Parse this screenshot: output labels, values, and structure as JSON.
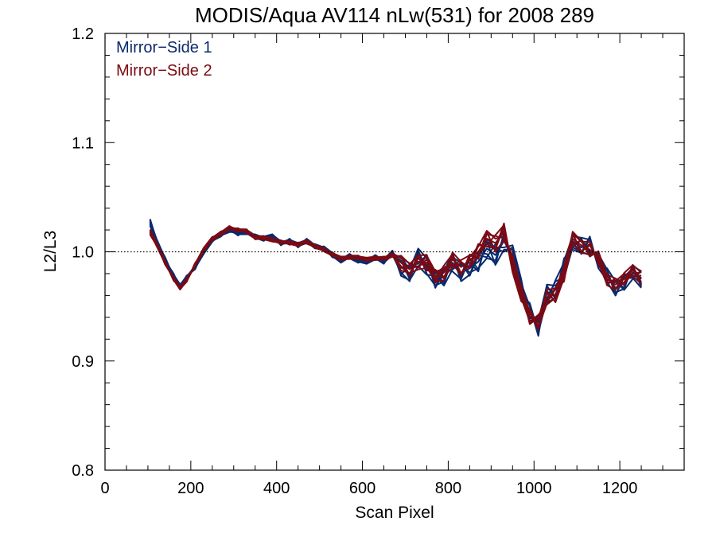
{
  "chart_data": {
    "type": "line",
    "title": "MODIS/Aqua AV114 nLw(531) for 2008 289",
    "xlabel": "Scan Pixel",
    "ylabel": "L2/L3",
    "xlim": [
      0,
      1350
    ],
    "ylim": [
      0.8,
      1.2
    ],
    "x_ticks": [
      "0",
      "200",
      "400",
      "600",
      "800",
      "1000",
      "1200"
    ],
    "y_ticks": [
      "0.8",
      "0.9",
      "1.0",
      "1.1",
      "1.2"
    ],
    "x_tick_values": [
      0,
      200,
      400,
      600,
      800,
      1000,
      1200
    ],
    "y_tick_values": [
      0.8,
      0.9,
      1.0,
      1.1,
      1.2
    ],
    "x_minor_step": 50,
    "y_minor_step": 0.02,
    "reference_line": {
      "y": 1.0,
      "style": "dotted"
    },
    "legend_placement": "top-left",
    "grid": false,
    "x": [
      105,
      120,
      140,
      160,
      175,
      190,
      210,
      230,
      250,
      270,
      290,
      310,
      330,
      350,
      370,
      390,
      410,
      430,
      450,
      470,
      490,
      510,
      530,
      550,
      570,
      590,
      610,
      630,
      650,
      670,
      690,
      710,
      730,
      750,
      770,
      790,
      810,
      830,
      850,
      870,
      890,
      910,
      930,
      950,
      970,
      990,
      1010,
      1030,
      1050,
      1070,
      1090,
      1110,
      1130,
      1150,
      1170,
      1190,
      1210,
      1230,
      1250
    ],
    "series": [
      {
        "name": "Mirror−Side 1",
        "color": "#0a2a6e",
        "values": [
          1.027,
          1.01,
          0.993,
          0.978,
          0.968,
          0.976,
          0.986,
          1.0,
          1.011,
          1.016,
          1.02,
          1.017,
          1.018,
          1.014,
          1.012,
          1.014,
          1.008,
          1.01,
          1.006,
          1.01,
          1.005,
          1.003,
          0.997,
          0.992,
          0.996,
          0.992,
          0.991,
          0.995,
          0.991,
          0.999,
          0.986,
          0.98,
          0.994,
          0.988,
          0.974,
          0.977,
          0.99,
          0.981,
          0.985,
          0.991,
          1.003,
          0.997,
          1.01,
          0.995,
          0.966,
          0.944,
          0.932,
          0.962,
          0.965,
          0.985,
          1.01,
          1.004,
          1.006,
          0.992,
          0.978,
          0.967,
          0.972,
          0.981,
          0.976
        ]
      },
      {
        "name": "Mirror−Side 2",
        "color": "#7a0a14",
        "values": [
          1.018,
          1.007,
          0.99,
          0.975,
          0.967,
          0.974,
          0.988,
          1.002,
          1.012,
          1.017,
          1.022,
          1.02,
          1.019,
          1.013,
          1.013,
          1.011,
          1.009,
          1.008,
          1.007,
          1.009,
          1.005,
          1.002,
          0.998,
          0.994,
          0.995,
          0.995,
          0.993,
          0.994,
          0.994,
          0.997,
          0.99,
          0.984,
          0.991,
          0.99,
          0.978,
          0.981,
          0.993,
          0.986,
          0.992,
          1.0,
          1.012,
          1.008,
          1.018,
          0.99,
          0.962,
          0.941,
          0.935,
          0.958,
          0.961,
          0.98,
          1.012,
          1.006,
          1.002,
          0.995,
          0.975,
          0.97,
          0.975,
          0.983,
          0.975
        ]
      }
    ],
    "sample_offsets": [
      [
        0,
        0,
        0,
        0,
        0,
        0,
        0,
        0,
        0,
        0,
        0,
        0,
        0,
        0,
        0,
        0,
        0,
        0,
        0,
        0,
        0,
        0,
        0,
        0,
        0,
        0,
        0,
        0,
        0,
        0,
        0,
        0,
        0,
        0,
        0,
        0,
        0,
        0,
        0,
        0,
        0,
        0,
        0,
        0,
        0,
        0,
        0,
        0,
        0,
        0,
        0,
        0,
        0,
        0,
        0,
        0,
        0,
        0,
        0
      ],
      [
        0.002,
        -0.001,
        0.002,
        -0.002,
        0.001,
        0.002,
        -0.002,
        0.001,
        -0.001,
        0.002,
        0.001,
        -0.002,
        0.002,
        0.001,
        -0.001,
        -0.002,
        0.002,
        -0.001,
        0.001,
        -0.002,
        0.002,
        0.001,
        -0.002,
        0.001,
        0.002,
        -0.001,
        -0.002,
        0.002,
        0.001,
        -0.002,
        0.006,
        -0.005,
        0.007,
        -0.004,
        0.008,
        -0.006,
        0.005,
        0.009,
        -0.007,
        0.006,
        -0.008,
        0.01,
        0.009,
        -0.006,
        0.008,
        -0.007,
        0.006,
        -0.008,
        0.009,
        0.005,
        -0.006,
        0.007,
        -0.005,
        0.004,
        -0.006,
        0.005,
        0.004,
        -0.005,
        0.006
      ],
      [
        -0.002,
        0.001,
        -0.001,
        0.002,
        -0.002,
        -0.001,
        0.002,
        -0.002,
        0.002,
        -0.001,
        -0.002,
        0.001,
        -0.001,
        -0.002,
        0.002,
        0.001,
        -0.002,
        0.002,
        -0.002,
        0.001,
        -0.001,
        -0.002,
        0.001,
        -0.002,
        -0.001,
        0.002,
        0.001,
        -0.001,
        -0.002,
        0.002,
        -0.007,
        0.008,
        -0.005,
        0.009,
        -0.006,
        0.007,
        -0.008,
        -0.006,
        0.009,
        -0.007,
        0.007,
        -0.009,
        -0.008,
        0.007,
        -0.009,
        0.008,
        -0.007,
        0.006,
        -0.006,
        -0.008,
        0.007,
        -0.006,
        0.006,
        -0.005,
        0.005,
        -0.004,
        -0.006,
        0.006,
        -0.004
      ],
      [
        0.001,
        0.002,
        0.001,
        -0.001,
        0.002,
        -0.002,
        0.001,
        0.002,
        0.001,
        -0.002,
        0.002,
        0.001,
        0.001,
        -0.001,
        -0.002,
        0.002,
        0.001,
        0.001,
        0.002,
        -0.001,
        -0.002,
        0.002,
        0.002,
        -0.001,
        0.001,
        0.002,
        -0.002,
        -0.002,
        0.002,
        0.001,
        0.004,
        0.006,
        -0.008,
        0.005,
        0.006,
        0.009,
        -0.004,
        0.007,
        0.005,
        -0.009,
        0.009,
        0.006,
        -0.01,
        0.009,
        0.005,
        0.006,
        -0.009,
        0.008,
        0.004,
        -0.006,
        0.006,
        0.008,
        -0.007,
        0.006,
        0.006,
        -0.007,
        0.005,
        0.004,
        -0.008
      ],
      [
        -0.001,
        -0.002,
        -0.002,
        0.001,
        -0.001,
        0.001,
        -0.001,
        -0.002,
        -0.002,
        0.001,
        -0.001,
        -0.001,
        -0.002,
        0.002,
        0.001,
        -0.001,
        -0.001,
        -0.002,
        -0.001,
        0.002,
        0.001,
        -0.001,
        -0.001,
        0.002,
        -0.002,
        -0.002,
        0.002,
        0.001,
        -0.001,
        -0.002,
        -0.005,
        -0.007,
        0.006,
        -0.008,
        -0.005,
        -0.004,
        0.007,
        -0.008,
        -0.006,
        0.008,
        -0.005,
        -0.008,
        0.007,
        -0.005,
        -0.007,
        -0.005,
        0.008,
        -0.009,
        -0.007,
        0.009,
        -0.008,
        -0.005,
        0.008,
        -0.007,
        -0.004,
        0.006,
        -0.007,
        -0.006,
        0.007
      ],
      [
        0.003,
        0.001,
        -0.002,
        0.001,
        0.002,
        0.001,
        0.001,
        -0.001,
        0.002,
        0.002,
        -0.001,
        0.002,
        -0.001,
        0.001,
        0.002,
        0.002,
        -0.002,
        0.001,
        0.002,
        0.001,
        0.001,
        -0.002,
        0.002,
        0.002,
        0.001,
        -0.002,
        0.001,
        0.002,
        0.001,
        -0.001,
        0.009,
        0.004,
        0.009,
        0.006,
        -0.007,
        0.005,
        0.009,
        -0.005,
        0.008,
        0.004,
        0.006,
        0.007,
        -0.006,
        0.011,
        0.009,
        -0.008,
        0.005,
        0.007,
        -0.008,
        0.007,
        0.004,
        0.009,
        0.005,
        -0.006,
        0.007,
        0.006,
        -0.005,
        0.007,
        0.005
      ],
      [
        -0.003,
        -0.002,
        0.002,
        -0.001,
        -0.002,
        0.002,
        -0.002,
        0.002,
        -0.001,
        -0.002,
        0.001,
        -0.002,
        0.002,
        -0.002,
        -0.001,
        0.001,
        0.002,
        -0.002,
        -0.001,
        -0.002,
        0.002,
        0.001,
        -0.001,
        -0.002,
        0.002,
        0.001,
        -0.001,
        -0.002,
        0.002,
        0.002,
        -0.008,
        -0.006,
        -0.007,
        -0.009,
        0.004,
        -0.008,
        -0.006,
        0.008,
        -0.004,
        -0.006,
        -0.009,
        -0.005,
        0.005,
        -0.008,
        -0.006,
        0.009,
        -0.006,
        -0.005,
        0.008,
        -0.009,
        -0.006,
        -0.004,
        -0.009,
        0.008,
        -0.005,
        -0.007,
        0.007,
        -0.005,
        -0.009
      ]
    ]
  },
  "legend": {
    "items": [
      {
        "label": "Mirror−Side 1",
        "color": "#0a2a6e"
      },
      {
        "label": "Mirror−Side 2",
        "color": "#7a0a14"
      }
    ]
  }
}
